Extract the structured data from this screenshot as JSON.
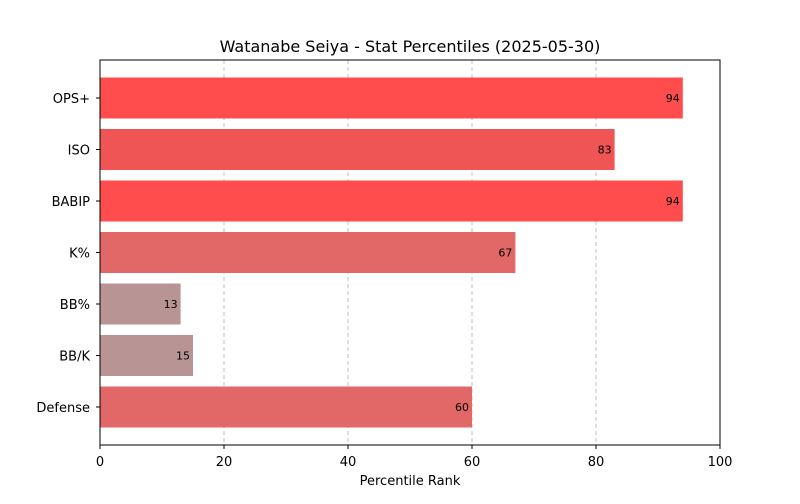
{
  "chart_data": {
    "type": "bar",
    "orientation": "horizontal",
    "title": "Watanabe Seiya - Stat Percentiles (2025-05-30)",
    "xlabel": "Percentile Rank",
    "ylabel": "",
    "xlim": [
      0,
      100
    ],
    "x_ticks": [
      "0",
      "20",
      "40",
      "60",
      "80",
      "100"
    ],
    "grid": "vertical dashed",
    "legend": "none",
    "categories": [
      "OPS+",
      "ISO",
      "BABIP",
      "K%",
      "BB%",
      "BB/K",
      "Defense"
    ],
    "values": [
      94,
      83,
      94,
      67,
      13,
      15,
      60
    ],
    "value_labels": [
      "94",
      "83",
      "94",
      "67",
      "13",
      "15",
      "60"
    ],
    "bar_colors": [
      "#ff4d4d",
      "#f05555",
      "#ff4d4d",
      "#e26767",
      "#b89494",
      "#b89494",
      "#e26767"
    ]
  }
}
